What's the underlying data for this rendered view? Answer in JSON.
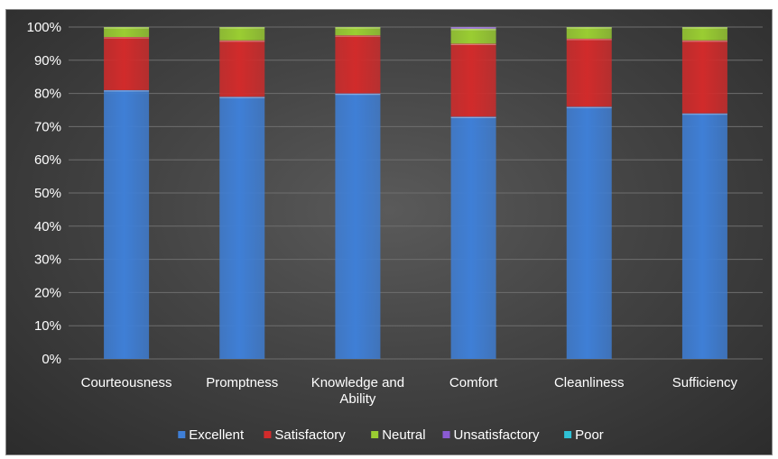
{
  "chart_data": {
    "type": "bar",
    "stacked": true,
    "percent": true,
    "title": "",
    "xlabel": "",
    "ylabel": "",
    "ylim": [
      0,
      100
    ],
    "yticks": [
      "0%",
      "10%",
      "20%",
      "30%",
      "40%",
      "50%",
      "60%",
      "70%",
      "80%",
      "90%",
      "100%"
    ],
    "categories": [
      [
        "Courteousness"
      ],
      [
        "Promptness"
      ],
      [
        "Knowledge and",
        "Ability"
      ],
      [
        "Comfort"
      ],
      [
        "Cleanliness"
      ],
      [
        "Sufficiency"
      ]
    ],
    "series": [
      {
        "name": "Excellent",
        "color": "#3f7fd6",
        "values": [
          81,
          79,
          80,
          73,
          76,
          74
        ]
      },
      {
        "name": "Satisfactory",
        "color": "#d12b2b",
        "values": [
          16,
          17,
          17.5,
          22,
          20.5,
          22
        ]
      },
      {
        "name": "Neutral",
        "color": "#9acd32",
        "values": [
          3,
          4,
          2.5,
          4.5,
          3.5,
          4
        ]
      },
      {
        "name": "Unsatisfactory",
        "color": "#8b5bd4",
        "values": [
          0,
          0,
          0,
          0.5,
          0,
          0
        ]
      },
      {
        "name": "Poor",
        "color": "#2fc1d6",
        "values": [
          0,
          0,
          0,
          0,
          0,
          0
        ]
      }
    ],
    "legend_position": "bottom"
  }
}
